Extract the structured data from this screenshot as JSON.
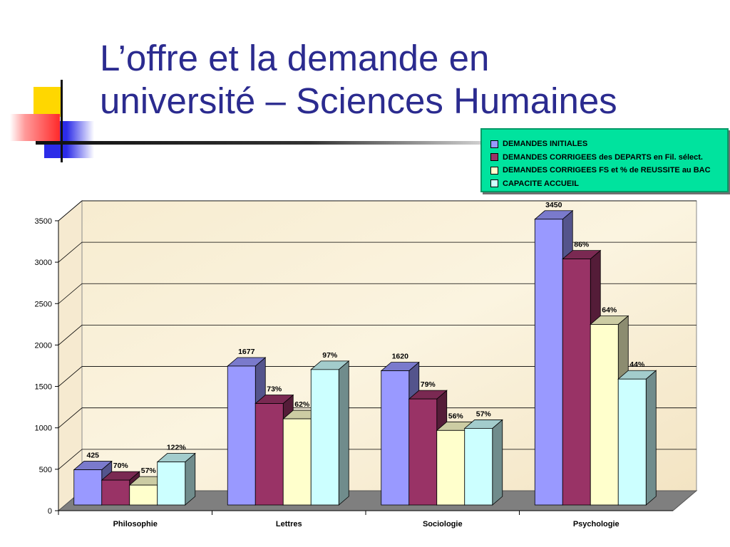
{
  "slide": {
    "title_line1": "L’offre et la demande en",
    "title_line2": "université – Sciences Humaines"
  },
  "legend": [
    {
      "label": "DEMANDES INITIALES",
      "color": "#9999ff"
    },
    {
      "label": "DEMANDES CORRIGEES des DEPARTS en Fil. sélect.",
      "color": "#993366"
    },
    {
      "label": "DEMANDES CORRIGEES FS et % de REUSSITE au BAC",
      "color": "#ffffcc"
    },
    {
      "label": "CAPACITE ACCUEIL",
      "color": "#ccffff"
    }
  ],
  "chart_data": {
    "type": "bar",
    "categories": [
      "Philosophie",
      "Lettres",
      "Sociologie",
      "Psychologie"
    ],
    "ylim": [
      0,
      3500
    ],
    "yticks": [
      0,
      500,
      1000,
      1500,
      2000,
      2500,
      3000,
      3500
    ],
    "grid": true,
    "series": [
      {
        "name": "DEMANDES INITIALES",
        "color": "#9999ff",
        "values": [
          425,
          1677,
          1620,
          3450
        ],
        "labels": [
          "425",
          "1677",
          "1620",
          "3450"
        ]
      },
      {
        "name": "DEMANDES CORRIGEES des DEPARTS en Fil. sélect.",
        "color": "#993366",
        "values": [
          300,
          1225,
          1280,
          2970
        ],
        "labels": [
          "70%",
          "73%",
          "79%",
          "86%"
        ]
      },
      {
        "name": "DEMANDES CORRIGEES FS et % de REUSSITE au BAC",
        "color": "#ffffcc",
        "values": [
          240,
          1040,
          900,
          2180
        ],
        "labels": [
          "57%",
          "62%",
          "56%",
          "64%"
        ]
      },
      {
        "name": "CAPACITE ACCUEIL",
        "color": "#ccffff",
        "values": [
          520,
          1635,
          925,
          1520
        ],
        "labels": [
          "122%",
          "97%",
          "57%",
          "44%"
        ]
      }
    ]
  }
}
